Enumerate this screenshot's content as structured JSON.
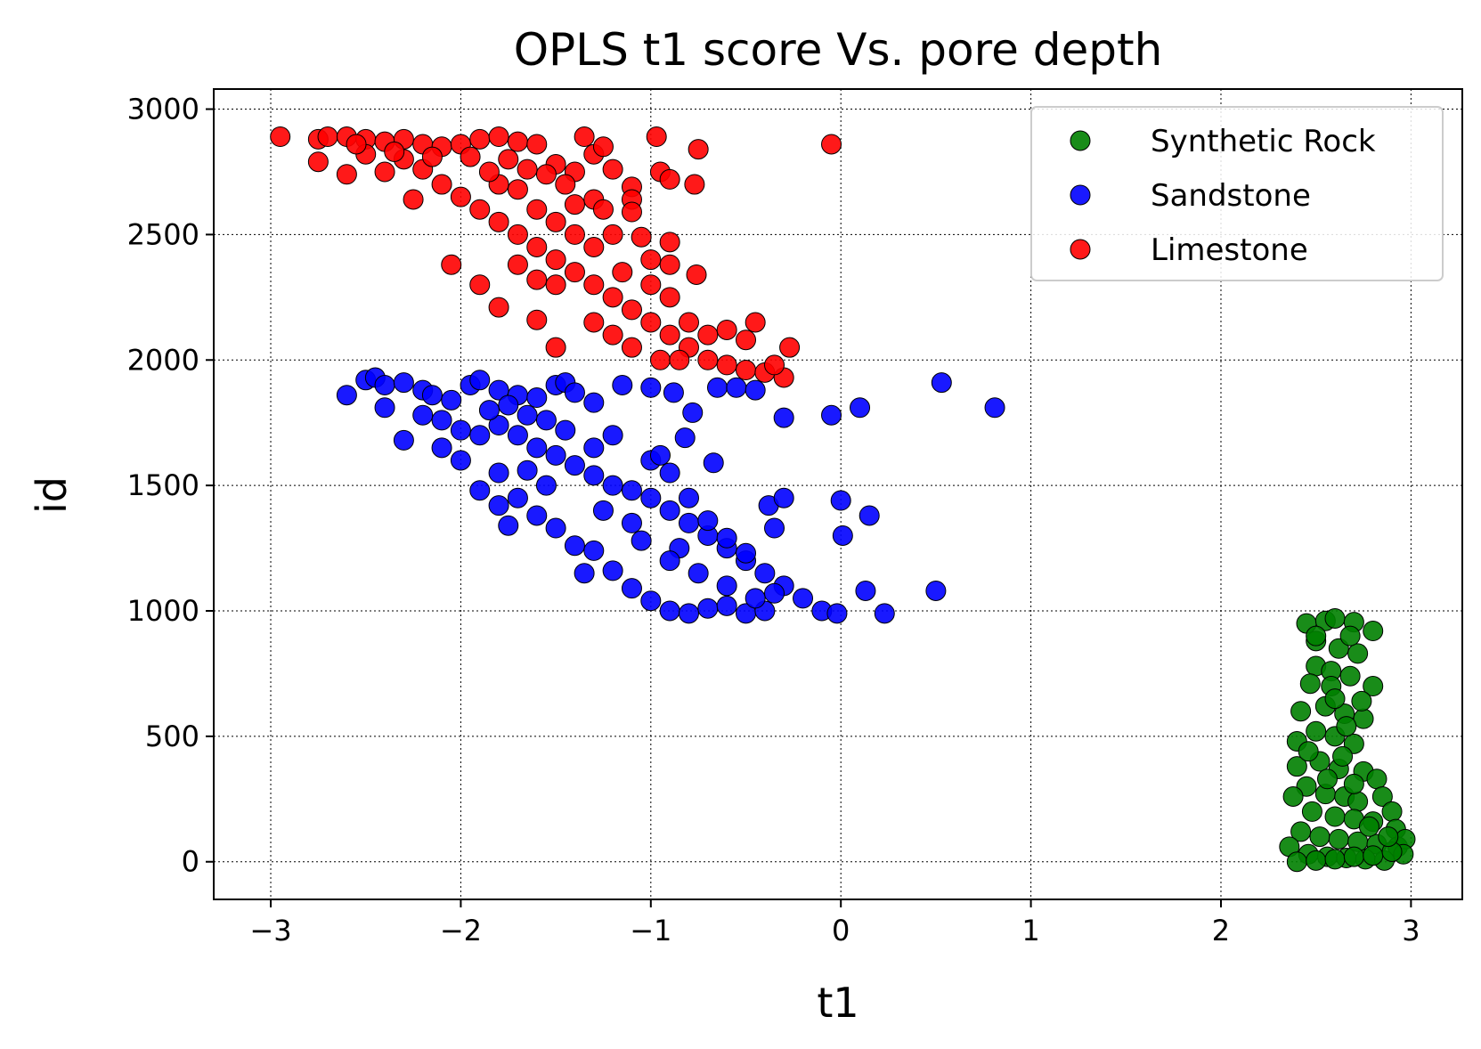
{
  "chart_data": {
    "type": "scatter",
    "title": "OPLS t1 score Vs. pore depth",
    "xlabel": "t1",
    "ylabel": "id",
    "xlim": [
      -3.3,
      3.27
    ],
    "ylim": [
      -150,
      3080
    ],
    "xticks": [
      -3,
      -2,
      -1,
      0,
      1,
      2,
      3
    ],
    "xtick_labels": [
      "−3",
      "−2",
      "−1",
      "0",
      "1",
      "2",
      "3"
    ],
    "yticks": [
      0,
      500,
      1000,
      1500,
      2000,
      2500,
      3000
    ],
    "ytick_labels": [
      "0",
      "500",
      "1000",
      "1500",
      "2000",
      "2500",
      "3000"
    ],
    "grid": true,
    "legend_position": "top-right",
    "series": [
      {
        "name": "Synthetic Rock",
        "color": "#008000",
        "points": [
          [
            2.45,
            950
          ],
          [
            2.55,
            960
          ],
          [
            2.6,
            970
          ],
          [
            2.7,
            955
          ],
          [
            2.8,
            920
          ],
          [
            2.5,
            880
          ],
          [
            2.62,
            850
          ],
          [
            2.72,
            830
          ],
          [
            2.5,
            780
          ],
          [
            2.58,
            760
          ],
          [
            2.68,
            740
          ],
          [
            2.8,
            700
          ],
          [
            2.47,
            710
          ],
          [
            2.42,
            600
          ],
          [
            2.55,
            620
          ],
          [
            2.65,
            590
          ],
          [
            2.75,
            570
          ],
          [
            2.5,
            520
          ],
          [
            2.6,
            500
          ],
          [
            2.7,
            470
          ],
          [
            2.4,
            480
          ],
          [
            2.4,
            380
          ],
          [
            2.52,
            400
          ],
          [
            2.62,
            370
          ],
          [
            2.75,
            360
          ],
          [
            2.82,
            330
          ],
          [
            2.45,
            300
          ],
          [
            2.55,
            270
          ],
          [
            2.65,
            260
          ],
          [
            2.72,
            240
          ],
          [
            2.85,
            260
          ],
          [
            2.38,
            260
          ],
          [
            2.48,
            200
          ],
          [
            2.6,
            180
          ],
          [
            2.7,
            170
          ],
          [
            2.8,
            160
          ],
          [
            2.9,
            200
          ],
          [
            2.92,
            130
          ],
          [
            2.42,
            120
          ],
          [
            2.52,
            100
          ],
          [
            2.62,
            90
          ],
          [
            2.72,
            80
          ],
          [
            2.82,
            70
          ],
          [
            2.93,
            60
          ],
          [
            2.97,
            90
          ],
          [
            2.36,
            60
          ],
          [
            2.46,
            30
          ],
          [
            2.56,
            20
          ],
          [
            2.66,
            15
          ],
          [
            2.76,
            10
          ],
          [
            2.86,
            5
          ],
          [
            2.96,
            30
          ],
          [
            2.4,
            0
          ],
          [
            2.5,
            5
          ],
          [
            2.6,
            10
          ],
          [
            2.7,
            20
          ],
          [
            2.8,
            25
          ],
          [
            2.9,
            40
          ],
          [
            2.58,
            700
          ],
          [
            2.6,
            650
          ],
          [
            2.68,
            900
          ],
          [
            2.5,
            900
          ],
          [
            2.64,
            420
          ],
          [
            2.56,
            330
          ],
          [
            2.7,
            310
          ],
          [
            2.78,
            140
          ],
          [
            2.46,
            440
          ],
          [
            2.74,
            640
          ],
          [
            2.66,
            540
          ],
          [
            2.88,
            100
          ]
        ]
      },
      {
        "name": "Sandstone",
        "color": "#0000ff",
        "points": [
          [
            -2.6,
            1860
          ],
          [
            -2.5,
            1920
          ],
          [
            -2.45,
            1930
          ],
          [
            -2.4,
            1900
          ],
          [
            -2.3,
            1910
          ],
          [
            -2.2,
            1880
          ],
          [
            -2.15,
            1860
          ],
          [
            -2.05,
            1840
          ],
          [
            -1.95,
            1900
          ],
          [
            -1.9,
            1920
          ],
          [
            -1.8,
            1880
          ],
          [
            -1.7,
            1860
          ],
          [
            -1.6,
            1850
          ],
          [
            -1.5,
            1900
          ],
          [
            -1.45,
            1910
          ],
          [
            -1.4,
            1870
          ],
          [
            -1.3,
            1830
          ],
          [
            -2.4,
            1810
          ],
          [
            -2.3,
            1680
          ],
          [
            -2.2,
            1780
          ],
          [
            -2.1,
            1760
          ],
          [
            -2.0,
            1720
          ],
          [
            -1.9,
            1700
          ],
          [
            -1.8,
            1740
          ],
          [
            -1.7,
            1700
          ],
          [
            -1.6,
            1650
          ],
          [
            -1.5,
            1620
          ],
          [
            -1.4,
            1580
          ],
          [
            -1.3,
            1540
          ],
          [
            -1.2,
            1500
          ],
          [
            -1.1,
            1480
          ],
          [
            -1.0,
            1450
          ],
          [
            -0.9,
            1400
          ],
          [
            -0.8,
            1350
          ],
          [
            -0.7,
            1300
          ],
          [
            -0.6,
            1250
          ],
          [
            -0.5,
            1200
          ],
          [
            -0.4,
            1150
          ],
          [
            -0.3,
            1100
          ],
          [
            -0.2,
            1050
          ],
          [
            -0.1,
            1000
          ],
          [
            -0.02,
            990
          ],
          [
            -1.9,
            1480
          ],
          [
            -1.8,
            1420
          ],
          [
            -1.75,
            1340
          ],
          [
            -1.6,
            1380
          ],
          [
            -1.5,
            1330
          ],
          [
            -1.4,
            1260
          ],
          [
            -1.3,
            1240
          ],
          [
            -1.2,
            1160
          ],
          [
            -1.1,
            1090
          ],
          [
            -1.0,
            1040
          ],
          [
            -0.9,
            1000
          ],
          [
            -0.8,
            990
          ],
          [
            -0.7,
            1010
          ],
          [
            -0.6,
            1020
          ],
          [
            -0.5,
            990
          ],
          [
            -0.4,
            1000
          ],
          [
            -1.0,
            1600
          ],
          [
            -0.9,
            1550
          ],
          [
            -0.8,
            1450
          ],
          [
            -0.7,
            1360
          ],
          [
            -0.6,
            1290
          ],
          [
            -0.5,
            1230
          ],
          [
            -1.2,
            1700
          ],
          [
            -1.3,
            1650
          ],
          [
            -1.45,
            1720
          ],
          [
            -1.55,
            1760
          ],
          [
            -1.65,
            1780
          ],
          [
            -1.75,
            1820
          ],
          [
            -1.85,
            1800
          ],
          [
            -0.82,
            1690
          ],
          [
            -0.67,
            1590
          ],
          [
            -0.78,
            1790
          ],
          [
            -0.65,
            1890
          ],
          [
            -0.55,
            1890
          ],
          [
            -0.45,
            1880
          ],
          [
            -0.3,
            1770
          ],
          [
            -0.05,
            1780
          ],
          [
            0.1,
            1810
          ],
          [
            0.53,
            1910
          ],
          [
            0.81,
            1810
          ],
          [
            -0.38,
            1420
          ],
          [
            -0.3,
            1450
          ],
          [
            -0.35,
            1330
          ],
          [
            0.0,
            1440
          ],
          [
            0.15,
            1380
          ],
          [
            0.01,
            1300
          ],
          [
            0.13,
            1080
          ],
          [
            0.5,
            1080
          ],
          [
            0.23,
            990
          ],
          [
            -1.15,
            1900
          ],
          [
            -1.0,
            1890
          ],
          [
            -0.88,
            1870
          ],
          [
            -0.95,
            1620
          ],
          [
            -1.1,
            1350
          ],
          [
            -1.25,
            1400
          ],
          [
            -1.35,
            1150
          ],
          [
            -1.55,
            1500
          ],
          [
            -1.65,
            1560
          ],
          [
            -0.6,
            1100
          ],
          [
            -0.75,
            1150
          ],
          [
            -0.85,
            1250
          ],
          [
            -0.45,
            1050
          ],
          [
            -0.35,
            1070
          ],
          [
            -2.0,
            1600
          ],
          [
            -2.1,
            1650
          ],
          [
            -1.7,
            1450
          ],
          [
            -1.8,
            1550
          ],
          [
            -0.9,
            1200
          ],
          [
            -1.05,
            1280
          ]
        ]
      },
      {
        "name": "Limestone",
        "color": "#ff0000",
        "points": [
          [
            -2.95,
            2890
          ],
          [
            -2.75,
            2880
          ],
          [
            -2.7,
            2890
          ],
          [
            -2.6,
            2890
          ],
          [
            -2.5,
            2880
          ],
          [
            -2.4,
            2870
          ],
          [
            -2.3,
            2880
          ],
          [
            -2.2,
            2860
          ],
          [
            -2.1,
            2850
          ],
          [
            -2.0,
            2860
          ],
          [
            -1.9,
            2880
          ],
          [
            -1.8,
            2890
          ],
          [
            -1.7,
            2870
          ],
          [
            -1.6,
            2860
          ],
          [
            -1.5,
            2780
          ],
          [
            -1.4,
            2750
          ],
          [
            -1.35,
            2890
          ],
          [
            -1.3,
            2820
          ],
          [
            -1.25,
            2850
          ],
          [
            -0.97,
            2890
          ],
          [
            -0.75,
            2840
          ],
          [
            -0.05,
            2860
          ],
          [
            -2.75,
            2790
          ],
          [
            -2.6,
            2740
          ],
          [
            -2.5,
            2820
          ],
          [
            -2.4,
            2750
          ],
          [
            -2.3,
            2800
          ],
          [
            -2.25,
            2640
          ],
          [
            -2.2,
            2760
          ],
          [
            -2.1,
            2700
          ],
          [
            -2.05,
            2380
          ],
          [
            -1.9,
            2300
          ],
          [
            -1.8,
            2210
          ],
          [
            -1.6,
            2160
          ],
          [
            -1.5,
            2050
          ],
          [
            -2.0,
            2650
          ],
          [
            -1.9,
            2600
          ],
          [
            -1.8,
            2550
          ],
          [
            -1.7,
            2500
          ],
          [
            -1.6,
            2450
          ],
          [
            -1.5,
            2400
          ],
          [
            -1.4,
            2350
          ],
          [
            -1.3,
            2300
          ],
          [
            -1.2,
            2250
          ],
          [
            -1.1,
            2200
          ],
          [
            -1.0,
            2150
          ],
          [
            -0.9,
            2100
          ],
          [
            -0.8,
            2050
          ],
          [
            -0.7,
            2000
          ],
          [
            -0.6,
            1980
          ],
          [
            -0.5,
            1960
          ],
          [
            -0.4,
            1950
          ],
          [
            -0.3,
            1930
          ],
          [
            -0.27,
            2050
          ],
          [
            -0.35,
            1980
          ],
          [
            -1.2,
            2760
          ],
          [
            -1.1,
            2690
          ],
          [
            -1.1,
            2640
          ],
          [
            -1.1,
            2590
          ],
          [
            -1.05,
            2490
          ],
          [
            -0.95,
            2750
          ],
          [
            -0.9,
            2720
          ],
          [
            -0.77,
            2700
          ],
          [
            -0.9,
            2470
          ],
          [
            -0.9,
            2380
          ],
          [
            -0.76,
            2340
          ],
          [
            -1.0,
            2400
          ],
          [
            -1.3,
            2640
          ],
          [
            -1.4,
            2620
          ],
          [
            -1.5,
            2550
          ],
          [
            -1.6,
            2600
          ],
          [
            -1.7,
            2680
          ],
          [
            -1.8,
            2700
          ],
          [
            -1.2,
            2500
          ],
          [
            -1.3,
            2450
          ],
          [
            -1.4,
            2500
          ],
          [
            -1.5,
            2300
          ],
          [
            -1.6,
            2320
          ],
          [
            -1.7,
            2380
          ],
          [
            -1.0,
            2300
          ],
          [
            -0.9,
            2250
          ],
          [
            -0.8,
            2150
          ],
          [
            -0.7,
            2100
          ],
          [
            -0.6,
            2120
          ],
          [
            -0.5,
            2080
          ],
          [
            -0.45,
            2150
          ],
          [
            -1.2,
            2100
          ],
          [
            -1.3,
            2150
          ],
          [
            -1.1,
            2050
          ],
          [
            -0.95,
            2000
          ],
          [
            -2.15,
            2810
          ],
          [
            -1.95,
            2810
          ],
          [
            -1.75,
            2800
          ],
          [
            -1.55,
            2740
          ],
          [
            -1.45,
            2700
          ],
          [
            -1.65,
            2760
          ],
          [
            -1.85,
            2750
          ],
          [
            -2.35,
            2830
          ],
          [
            -2.55,
            2860
          ],
          [
            -1.25,
            2600
          ],
          [
            -1.15,
            2350
          ],
          [
            -0.85,
            2000
          ]
        ]
      }
    ]
  }
}
